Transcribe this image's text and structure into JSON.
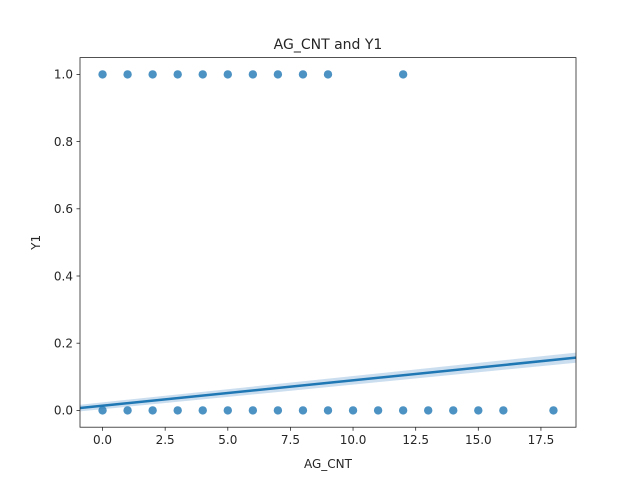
{
  "chart_data": {
    "type": "scatter",
    "title": "AG_CNT and Y1",
    "xlabel": "AG_CNT",
    "ylabel": "Y1",
    "xlim": [
      -0.9,
      18.9
    ],
    "ylim": [
      -0.05,
      1.05
    ],
    "xticks": [
      0.0,
      2.5,
      5.0,
      7.5,
      10.0,
      12.5,
      15.0,
      17.5
    ],
    "xtick_labels": [
      "0.0",
      "2.5",
      "5.0",
      "7.5",
      "10.0",
      "12.5",
      "15.0",
      "17.5"
    ],
    "yticks": [
      0.0,
      0.2,
      0.4,
      0.6,
      0.8,
      1.0
    ],
    "ytick_labels": [
      "0.0",
      "0.2",
      "0.4",
      "0.6",
      "0.8",
      "1.0"
    ],
    "grid": false,
    "point_color": "#1f77b4",
    "line_color": "#1f77b4",
    "ci_color": "#a9c8e4",
    "series": [
      {
        "points": [
          {
            "x": 0,
            "y": 1
          },
          {
            "x": 1,
            "y": 1
          },
          {
            "x": 2,
            "y": 1
          },
          {
            "x": 3,
            "y": 1
          },
          {
            "x": 4,
            "y": 1
          },
          {
            "x": 5,
            "y": 1
          },
          {
            "x": 6,
            "y": 1
          },
          {
            "x": 7,
            "y": 1
          },
          {
            "x": 8,
            "y": 1
          },
          {
            "x": 9,
            "y": 1
          },
          {
            "x": 12,
            "y": 1
          },
          {
            "x": 0,
            "y": 0
          },
          {
            "x": 1,
            "y": 0
          },
          {
            "x": 2,
            "y": 0
          },
          {
            "x": 3,
            "y": 0
          },
          {
            "x": 4,
            "y": 0
          },
          {
            "x": 5,
            "y": 0
          },
          {
            "x": 6,
            "y": 0
          },
          {
            "x": 7,
            "y": 0
          },
          {
            "x": 8,
            "y": 0
          },
          {
            "x": 9,
            "y": 0
          },
          {
            "x": 10,
            "y": 0
          },
          {
            "x": 11,
            "y": 0
          },
          {
            "x": 12,
            "y": 0
          },
          {
            "x": 13,
            "y": 0
          },
          {
            "x": 14,
            "y": 0
          },
          {
            "x": 15,
            "y": 0
          },
          {
            "x": 16,
            "y": 0
          },
          {
            "x": 18,
            "y": 0
          }
        ]
      }
    ],
    "regression": {
      "x": [
        -0.9,
        18.9
      ],
      "y": [
        0.007,
        0.157
      ],
      "ci_lower": [
        -0.003,
        0.142
      ],
      "ci_upper": [
        0.017,
        0.172
      ]
    }
  }
}
